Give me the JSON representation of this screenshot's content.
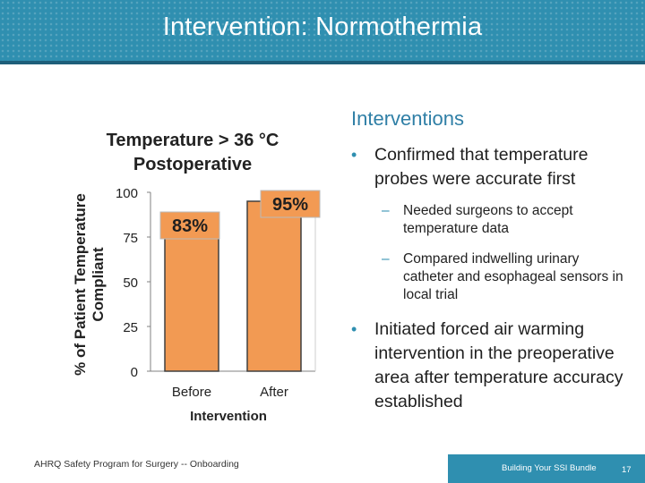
{
  "header": {
    "title": "Intervention: Normothermia"
  },
  "chart_data": {
    "type": "bar",
    "title": "Temperature > 36 °C Postoperative",
    "xlabel": "Intervention",
    "ylabel": "% of Patient Temperature Compliant",
    "categories": [
      "Before",
      "After"
    ],
    "values": [
      83,
      95
    ],
    "value_labels": [
      "83%",
      "95%"
    ],
    "ylim": [
      0,
      100
    ],
    "yticks": [
      0,
      25,
      50,
      75,
      100
    ],
    "ytick_labels": [
      "0",
      "25",
      "50",
      "75",
      "100"
    ],
    "grid": false,
    "legend": "none",
    "colors": {
      "bar_fill": "#f29a53",
      "bar_stroke": "#404040",
      "label_box_stroke": "#b9b9b9",
      "axis": "#808080"
    }
  },
  "right": {
    "heading": "Interventions",
    "bullet1": "Confirmed that temperature probes were accurate first",
    "sub1": "Needed surgeons to accept temperature data",
    "sub2": "Compared indwelling urinary catheter and esophageal sensors in local trial",
    "bullet2": "Initiated forced air warming intervention in the preoperative area after temperature accuracy established",
    "bullet_glyph": "•",
    "dash_glyph": "–"
  },
  "footer": {
    "left_text": "AHRQ Safety Program for Surgery -- Onboarding",
    "bundle_text": "Building Your SSI Bundle",
    "page_number": "17"
  }
}
